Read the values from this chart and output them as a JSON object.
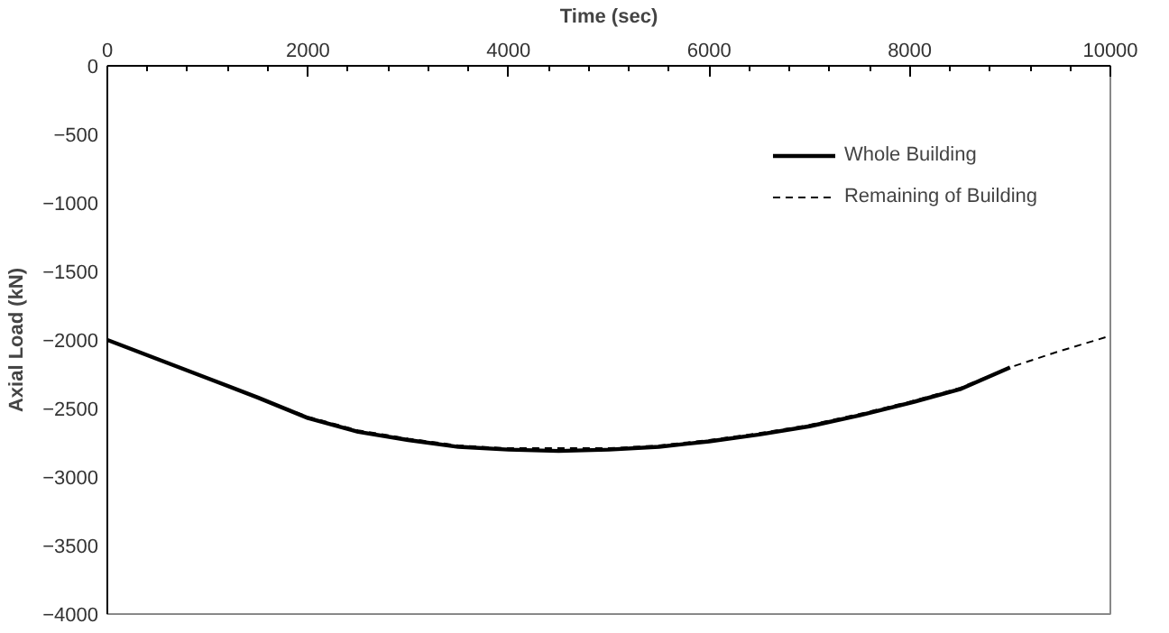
{
  "chart_data": {
    "type": "line",
    "xlabel": "Time (sec)",
    "ylabel": "Axial Load (kN)",
    "xlim": [
      0,
      10000
    ],
    "xticks": [
      0,
      2000,
      4000,
      6000,
      8000,
      10000
    ],
    "ylim": [
      -4000,
      0
    ],
    "yticks": [
      0,
      -500,
      -1000,
      -1500,
      -2000,
      -2500,
      -3000,
      -3500,
      -4000
    ],
    "grid": false,
    "legend": "top right",
    "series": [
      {
        "name": "Whole Building",
        "color": "#000000",
        "line_style": "solid",
        "x": [
          0,
          500,
          1000,
          1500,
          2000,
          2500,
          3000,
          3500,
          4000,
          4500,
          5000,
          5500,
          6000,
          6500,
          7000,
          7500,
          8000,
          8500,
          9000
        ],
        "values": [
          -2000,
          -2140,
          -2280,
          -2420,
          -2570,
          -2670,
          -2730,
          -2780,
          -2800,
          -2810,
          -2800,
          -2780,
          -2740,
          -2690,
          -2630,
          -2550,
          -2460,
          -2360,
          -2200
        ]
      },
      {
        "name": "Remaining of Building",
        "color": "#000000",
        "line_style": "dashed",
        "x": [
          0,
          500,
          1000,
          1500,
          2000,
          2500,
          3000,
          3500,
          4000,
          4500,
          5000,
          5500,
          6000,
          6500,
          7000,
          7500,
          8000,
          8500,
          9000,
          9500,
          10000
        ],
        "values": [
          -2000,
          -2140,
          -2280,
          -2420,
          -2560,
          -2660,
          -2720,
          -2770,
          -2790,
          -2790,
          -2790,
          -2770,
          -2730,
          -2680,
          -2620,
          -2540,
          -2450,
          -2350,
          -2200,
          -2080,
          -1970
        ]
      }
    ]
  }
}
